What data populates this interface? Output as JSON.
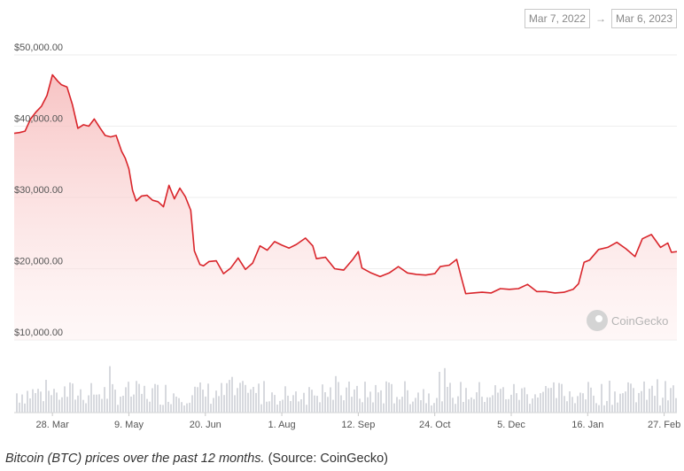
{
  "date_range": {
    "start": "Mar 7, 2022",
    "arrow": "→",
    "end": "Mar 6, 2023"
  },
  "watermark": "CoinGecko",
  "caption": {
    "italic": "Bitcoin (BTC) prices over the past 12 months.",
    "source": " (Source: CoinGecko)"
  },
  "colors": {
    "line": "#d9252b",
    "fill_top": "#f8c8c8",
    "volume": "#d7d9de",
    "grid": "#eeeeee"
  },
  "chart_data": {
    "type": "line",
    "title": "",
    "xlabel": "",
    "ylabel": "",
    "ylim": [
      10000,
      50000
    ],
    "yticks": [
      {
        "value": 10000,
        "label": "$10,000.00"
      },
      {
        "value": 20000,
        "label": "$20,000.00"
      },
      {
        "value": 30000,
        "label": "$30,000.00"
      },
      {
        "value": 40000,
        "label": "$40,000.00"
      },
      {
        "value": 50000,
        "label": "$50,000.00"
      }
    ],
    "xticks": [
      {
        "date": "2022-03-28",
        "label": "28. Mar"
      },
      {
        "date": "2022-05-09",
        "label": "9. May"
      },
      {
        "date": "2022-06-20",
        "label": "20. Jun"
      },
      {
        "date": "2022-08-01",
        "label": "1. Aug"
      },
      {
        "date": "2022-09-12",
        "label": "12. Sep"
      },
      {
        "date": "2022-10-24",
        "label": "24. Oct"
      },
      {
        "date": "2022-12-05",
        "label": "5. Dec"
      },
      {
        "date": "2023-01-16",
        "label": "16. Jan"
      },
      {
        "date": "2023-02-27",
        "label": "27. Feb"
      }
    ],
    "xrange": [
      "2022-03-07",
      "2023-03-06"
    ],
    "series": [
      {
        "x": [
          "2022-03-07",
          "2022-03-10",
          "2022-03-13",
          "2022-03-16",
          "2022-03-19",
          "2022-03-22",
          "2022-03-25",
          "2022-03-28",
          "2022-03-31",
          "2022-04-02",
          "2022-04-05",
          "2022-04-08",
          "2022-04-11",
          "2022-04-14",
          "2022-04-17",
          "2022-04-20",
          "2022-04-23",
          "2022-04-26",
          "2022-04-29",
          "2022-05-02",
          "2022-05-05",
          "2022-05-07",
          "2022-05-09",
          "2022-05-11",
          "2022-05-13",
          "2022-05-16",
          "2022-05-19",
          "2022-05-22",
          "2022-05-25",
          "2022-05-28",
          "2022-05-31",
          "2022-06-03",
          "2022-06-06",
          "2022-06-09",
          "2022-06-12",
          "2022-06-14",
          "2022-06-17",
          "2022-06-19",
          "2022-06-22",
          "2022-06-26",
          "2022-06-30",
          "2022-07-04",
          "2022-07-08",
          "2022-07-12",
          "2022-07-16",
          "2022-07-20",
          "2022-07-24",
          "2022-07-28",
          "2022-08-01",
          "2022-08-05",
          "2022-08-09",
          "2022-08-14",
          "2022-08-18",
          "2022-08-20",
          "2022-08-25",
          "2022-08-30",
          "2022-09-04",
          "2022-09-09",
          "2022-09-12",
          "2022-09-14",
          "2022-09-19",
          "2022-09-24",
          "2022-09-29",
          "2022-10-04",
          "2022-10-09",
          "2022-10-14",
          "2022-10-19",
          "2022-10-24",
          "2022-10-27",
          "2022-11-01",
          "2022-11-05",
          "2022-11-08",
          "2022-11-10",
          "2022-11-14",
          "2022-11-19",
          "2022-11-24",
          "2022-11-29",
          "2022-12-04",
          "2022-12-09",
          "2022-12-14",
          "2022-12-19",
          "2022-12-24",
          "2022-12-29",
          "2023-01-03",
          "2023-01-08",
          "2023-01-11",
          "2023-01-14",
          "2023-01-17",
          "2023-01-22",
          "2023-01-27",
          "2023-02-01",
          "2023-02-06",
          "2023-02-11",
          "2023-02-15",
          "2023-02-20",
          "2023-02-25",
          "2023-03-01",
          "2023-03-03",
          "2023-03-06"
        ],
        "y": [
          39000,
          39100,
          39300,
          41000,
          42000,
          42800,
          44300,
          47200,
          46300,
          45800,
          45500,
          43000,
          39700,
          40200,
          40000,
          41000,
          39800,
          38700,
          38500,
          38700,
          36500,
          35500,
          34000,
          31000,
          29500,
          30200,
          30300,
          29600,
          29400,
          28700,
          31700,
          29800,
          31300,
          30100,
          28200,
          22500,
          20600,
          20400,
          21000,
          21100,
          19300,
          20100,
          21500,
          19900,
          20800,
          23200,
          22600,
          23800,
          23300,
          22900,
          23400,
          24300,
          23200,
          21400,
          21600,
          20000,
          19800,
          21300,
          22400,
          20100,
          19400,
          18900,
          19400,
          20300,
          19400,
          19200,
          19100,
          19300,
          20300,
          20500,
          21300,
          18400,
          16500,
          16600,
          16700,
          16600,
          17200,
          17100,
          17200,
          17800,
          16800,
          16800,
          16600,
          16700,
          17100,
          17900,
          20900,
          21200,
          22700,
          23000,
          23700,
          22800,
          21700,
          24200,
          24800,
          23000,
          23600,
          22300,
          22400
        ]
      }
    ]
  }
}
